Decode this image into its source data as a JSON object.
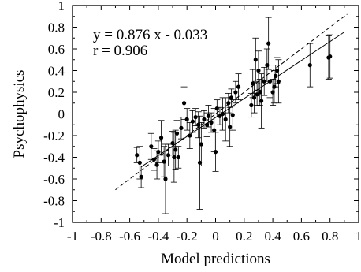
{
  "chart_data": {
    "type": "scatter",
    "xlabel": "Model predictions",
    "ylabel": "Psychophysics",
    "xlim": [
      -1,
      1
    ],
    "ylim": [
      -1,
      1
    ],
    "grid": false,
    "x_ticks": [
      "-1",
      "-0.8",
      "-0.6",
      "-0.4",
      "-0.2",
      "0",
      "0.2",
      "0.4",
      "0.6",
      "0.8",
      "1"
    ],
    "y_ticks": [
      "-1",
      "-0.8",
      "-0.6",
      "-0.4",
      "-0.2",
      "0",
      "0.2",
      "0.4",
      "0.6",
      "0.8",
      "1"
    ],
    "annotations": [
      "y = 0.876 x - 0.033",
      "r = 0.906"
    ],
    "fit_line": {
      "slope": 0.876,
      "intercept": -0.033,
      "x_range": [
        -0.52,
        0.9
      ]
    },
    "identity_line": {
      "x_range": [
        -0.7,
        0.92
      ]
    },
    "points": [
      {
        "x": -0.55,
        "y": -0.38,
        "err": 0.07
      },
      {
        "x": -0.53,
        "y": -0.45,
        "err": 0.15
      },
      {
        "x": -0.52,
        "y": -0.58,
        "err": 0.1
      },
      {
        "x": -0.45,
        "y": -0.3,
        "err": 0.12
      },
      {
        "x": -0.43,
        "y": -0.42,
        "err": 0.1
      },
      {
        "x": -0.41,
        "y": -0.47,
        "err": 0.13
      },
      {
        "x": -0.4,
        "y": -0.35,
        "err": 0.1
      },
      {
        "x": -0.38,
        "y": -0.22,
        "err": 0.16
      },
      {
        "x": -0.36,
        "y": -0.44,
        "err": 0.14
      },
      {
        "x": -0.35,
        "y": -0.6,
        "err": 0.32
      },
      {
        "x": -0.33,
        "y": -0.38,
        "err": 0.1
      },
      {
        "x": -0.3,
        "y": -0.27,
        "err": 0.11
      },
      {
        "x": -0.29,
        "y": -0.4,
        "err": 0.23
      },
      {
        "x": -0.28,
        "y": -0.33,
        "err": 0.18
      },
      {
        "x": -0.27,
        "y": -0.18,
        "err": 0.12
      },
      {
        "x": -0.26,
        "y": -0.4,
        "err": 0.1
      },
      {
        "x": -0.24,
        "y": -0.13,
        "err": 0.1
      },
      {
        "x": -0.22,
        "y": 0.1,
        "err": 0.15
      },
      {
        "x": -0.2,
        "y": -0.05,
        "err": 0.1
      },
      {
        "x": -0.18,
        "y": -0.2,
        "err": 0.12
      },
      {
        "x": -0.16,
        "y": -0.07,
        "err": 0.1
      },
      {
        "x": -0.14,
        "y": -0.03,
        "err": 0.08
      },
      {
        "x": -0.12,
        "y": -0.1,
        "err": 0.12
      },
      {
        "x": -0.11,
        "y": -0.45,
        "err": 0.43
      },
      {
        "x": -0.1,
        "y": -0.28,
        "err": 0.2
      },
      {
        "x": -0.08,
        "y": -0.05,
        "err": 0.08
      },
      {
        "x": -0.06,
        "y": -0.1,
        "err": 0.11
      },
      {
        "x": -0.05,
        "y": -0.02,
        "err": 0.1
      },
      {
        "x": -0.03,
        "y": -0.08,
        "err": 0.09
      },
      {
        "x": -0.01,
        "y": -0.15,
        "err": 0.2
      },
      {
        "x": 0.0,
        "y": -0.35,
        "err": 0.18
      },
      {
        "x": 0.01,
        "y": 0.05,
        "err": 0.08
      },
      {
        "x": 0.03,
        "y": -0.02,
        "err": 0.08
      },
      {
        "x": 0.05,
        "y": 0.0,
        "err": 0.15
      },
      {
        "x": 0.07,
        "y": -0.05,
        "err": 0.2
      },
      {
        "x": 0.09,
        "y": 0.1,
        "err": 0.09
      },
      {
        "x": 0.1,
        "y": -0.12,
        "err": 0.18
      },
      {
        "x": 0.11,
        "y": 0.15,
        "err": 0.08
      },
      {
        "x": 0.12,
        "y": -0.01,
        "err": 0.14
      },
      {
        "x": 0.14,
        "y": 0.2,
        "err": 0.1
      },
      {
        "x": 0.16,
        "y": 0.25,
        "err": 0.12
      },
      {
        "x": 0.25,
        "y": 0.08,
        "err": 0.11
      },
      {
        "x": 0.26,
        "y": 0.28,
        "err": 0.13
      },
      {
        "x": 0.27,
        "y": 0.15,
        "err": 0.14
      },
      {
        "x": 0.28,
        "y": 0.5,
        "err": 0.2
      },
      {
        "x": 0.29,
        "y": 0.18,
        "err": 0.1
      },
      {
        "x": 0.3,
        "y": 0.4,
        "err": 0.18
      },
      {
        "x": 0.31,
        "y": 0.2,
        "err": 0.12
      },
      {
        "x": 0.32,
        "y": 0.12,
        "err": 0.25
      },
      {
        "x": 0.34,
        "y": 0.3,
        "err": 0.13
      },
      {
        "x": 0.36,
        "y": 0.45,
        "err": 0.15
      },
      {
        "x": 0.37,
        "y": 0.65,
        "err": 0.24
      },
      {
        "x": 0.38,
        "y": 0.3,
        "err": 0.15
      },
      {
        "x": 0.4,
        "y": 0.2,
        "err": 0.12
      },
      {
        "x": 0.41,
        "y": 0.25,
        "err": 0.15
      },
      {
        "x": 0.42,
        "y": 0.35,
        "err": 0.1
      },
      {
        "x": 0.43,
        "y": 0.4,
        "err": 0.12
      },
      {
        "x": 0.44,
        "y": 0.3,
        "err": 0.2
      },
      {
        "x": 0.66,
        "y": 0.45,
        "err": 0.2
      },
      {
        "x": 0.79,
        "y": 0.52,
        "err": 0.2
      },
      {
        "x": 0.8,
        "y": 0.53,
        "err": 0.2
      }
    ]
  }
}
